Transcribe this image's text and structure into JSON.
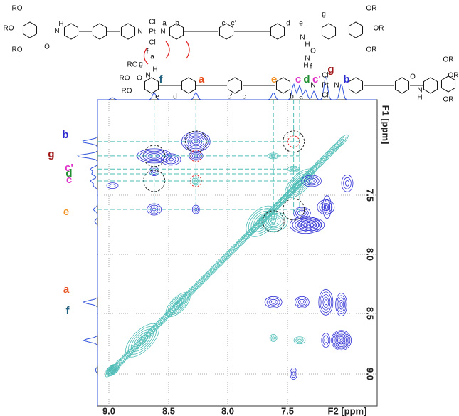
{
  "axes": {
    "x_label": "F2 [ppm]",
    "y_label": "F1 [ppm]",
    "x_ticks": [
      "9.0",
      "8.5",
      "8.0",
      "7.5"
    ],
    "y_ticks": [
      "7.5",
      "8.0",
      "8.5",
      "9.0"
    ]
  },
  "top_peaks": [
    "f",
    "a",
    "e",
    "c",
    "d",
    "c'",
    "g",
    "b"
  ],
  "left_peaks": [
    "b",
    "g",
    "c'",
    "d",
    "c",
    "e",
    "a",
    "f"
  ],
  "structure": {
    "labels": [
      "RO",
      "RO",
      "RO",
      "O",
      "H",
      "N",
      "N",
      "Pt",
      "Cl",
      "Cl",
      "N",
      "a",
      "b",
      "c",
      "c'",
      "d",
      "e",
      "N",
      "H",
      "O",
      "g",
      "OR",
      "OR",
      "OR",
      "RO",
      "RO",
      "RO",
      "O",
      "g",
      "a",
      "f",
      "H",
      "N",
      "e",
      "d",
      "c'",
      "c",
      "b",
      "a",
      "N",
      "Pt",
      "Cl",
      "Cl",
      "N",
      "N",
      "H",
      "f",
      "N",
      "H",
      "O",
      "OR",
      "OR",
      "OR"
    ]
  }
}
